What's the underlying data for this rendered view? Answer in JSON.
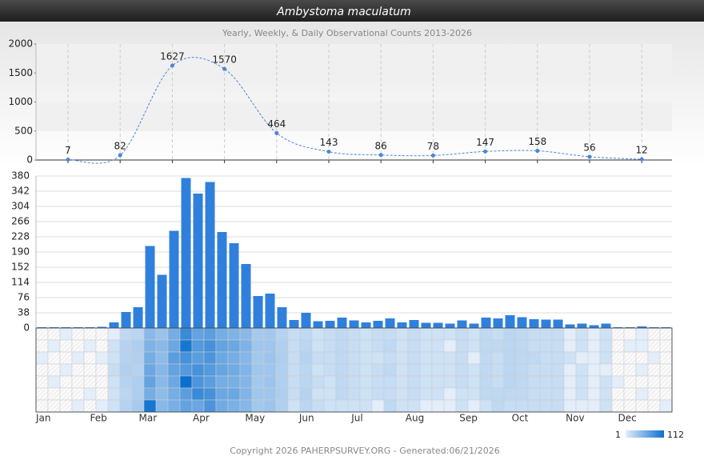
{
  "header": {
    "title": "Ambystoma maculatum",
    "subtitle": "Yearly, Weekly, & Daily Observational Counts 2013-2026"
  },
  "footer": "Copyright 2026 PAHERPSURVEY.ORG - Generated:06/21/2026",
  "months": [
    "Jan",
    "Feb",
    "Mar",
    "Apr",
    "May",
    "Jun",
    "Jul",
    "Aug",
    "Sep",
    "Oct",
    "Nov",
    "Dec"
  ],
  "chart_data": [
    {
      "type": "line",
      "values": [
        7,
        82,
        1627,
        1570,
        464,
        143,
        86,
        78,
        147,
        158,
        56,
        12
      ],
      "color": "#4a86d8",
      "ylim": [
        0,
        2000
      ],
      "yticks": [
        0,
        500,
        1000,
        1500,
        2000
      ],
      "grid": true
    },
    {
      "type": "bar",
      "values": [
        2,
        2,
        2,
        2,
        2,
        3,
        14,
        40,
        52,
        205,
        133,
        243,
        375,
        336,
        365,
        240,
        212,
        160,
        80,
        86,
        52,
        20,
        38,
        17,
        18,
        26,
        19,
        14,
        18,
        24,
        14,
        20,
        13,
        13,
        11,
        19,
        11,
        26,
        24,
        32,
        27,
        22,
        21,
        21,
        9,
        11,
        7,
        11,
        2,
        2,
        4,
        2,
        2
      ],
      "color": "#2f80dc",
      "ylim": [
        0,
        380
      ],
      "yticks": [
        0,
        38,
        76,
        114,
        152,
        190,
        228,
        266,
        304,
        342,
        380
      ],
      "grid": true
    },
    {
      "type": "heatmap",
      "clim": [
        1,
        112
      ],
      "colors": [
        "#e3eefa",
        "#0b6fd0"
      ],
      "rows": [
        [
          null,
          null,
          1,
          null,
          null,
          null,
          1,
          4,
          5,
          20,
          14,
          30,
          70,
          40,
          45,
          30,
          25,
          20,
          10,
          11,
          6,
          3,
          4,
          2,
          3,
          4,
          3,
          2,
          3,
          3,
          2,
          3,
          2,
          2,
          2,
          3,
          2,
          4,
          3,
          5,
          4,
          3,
          3,
          3,
          1,
          2,
          1,
          2,
          null,
          null,
          1,
          null,
          null
        ],
        [
          null,
          1,
          null,
          null,
          1,
          null,
          2,
          6,
          8,
          25,
          20,
          35,
          100,
          50,
          60,
          40,
          35,
          25,
          12,
          12,
          7,
          3,
          5,
          2,
          3,
          4,
          3,
          2,
          3,
          4,
          2,
          3,
          2,
          2,
          1,
          3,
          2,
          4,
          4,
          5,
          4,
          3,
          3,
          3,
          1,
          2,
          1,
          2,
          null,
          1,
          1,
          null,
          null
        ],
        [
          1,
          null,
          null,
          1,
          null,
          1,
          2,
          6,
          7,
          30,
          18,
          45,
          60,
          45,
          55,
          35,
          30,
          22,
          11,
          13,
          8,
          3,
          6,
          3,
          3,
          4,
          3,
          2,
          2,
          3,
          2,
          3,
          2,
          2,
          2,
          3,
          1,
          4,
          3,
          5,
          4,
          4,
          3,
          3,
          2,
          1,
          1,
          2,
          null,
          null,
          null,
          1,
          null
        ],
        [
          null,
          null,
          1,
          null,
          null,
          null,
          3,
          7,
          6,
          35,
          22,
          40,
          50,
          60,
          50,
          38,
          32,
          24,
          12,
          12,
          7,
          3,
          5,
          2,
          3,
          4,
          3,
          2,
          3,
          4,
          2,
          3,
          2,
          2,
          2,
          3,
          2,
          4,
          3,
          5,
          4,
          3,
          3,
          3,
          1,
          2,
          1,
          1,
          null,
          null,
          1,
          null,
          null
        ],
        [
          null,
          1,
          null,
          null,
          null,
          null,
          2,
          6,
          8,
          40,
          20,
          35,
          112,
          55,
          45,
          30,
          28,
          23,
          11,
          13,
          7,
          3,
          5,
          3,
          2,
          4,
          3,
          2,
          3,
          3,
          2,
          3,
          2,
          2,
          2,
          3,
          2,
          4,
          3,
          5,
          4,
          3,
          3,
          3,
          1,
          2,
          1,
          2,
          1,
          null,
          null,
          null,
          null
        ],
        [
          null,
          null,
          null,
          null,
          1,
          null,
          2,
          5,
          8,
          30,
          18,
          30,
          45,
          70,
          60,
          35,
          35,
          24,
          12,
          12,
          8,
          3,
          6,
          2,
          2,
          4,
          3,
          2,
          3,
          3,
          2,
          3,
          2,
          2,
          1,
          2,
          2,
          4,
          4,
          4,
          4,
          3,
          3,
          3,
          1,
          2,
          1,
          2,
          null,
          null,
          1,
          null,
          null
        ],
        [
          null,
          null,
          null,
          1,
          null,
          1,
          2,
          6,
          10,
          100,
          21,
          28,
          40,
          36,
          55,
          32,
          27,
          22,
          11,
          13,
          7,
          2,
          5,
          3,
          2,
          2,
          2,
          2,
          1,
          4,
          2,
          2,
          1,
          1,
          1,
          2,
          1,
          2,
          4,
          3,
          3,
          3,
          3,
          3,
          1,
          1,
          1,
          2,
          null,
          null,
          null,
          null,
          1
        ]
      ]
    }
  ]
}
